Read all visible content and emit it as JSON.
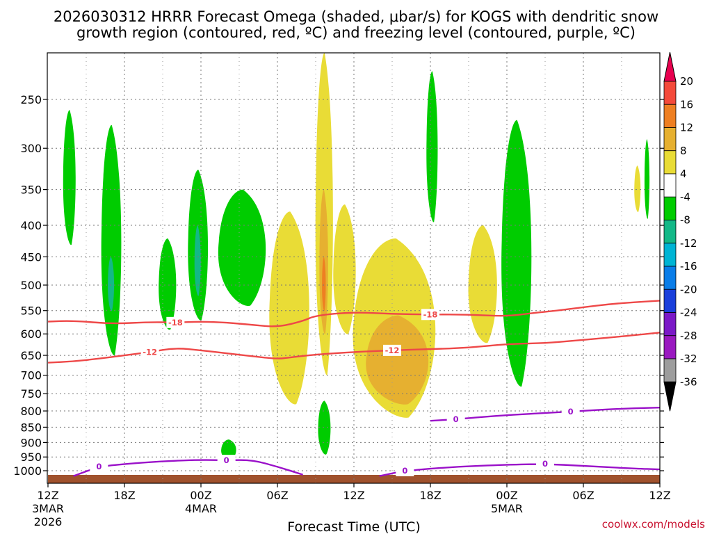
{
  "title_line1": "2026030312 HRRR Forecast Omega (shaded, μbar/s) for KOGS with dendritic snow",
  "title_line2": "growth region (contoured, red, ºC) and freezing level (contoured, purple, ºC)",
  "credit": "coolwx.com/models",
  "chart_data": {
    "type": "contour",
    "xlabel": "Forecast Time (UTC)",
    "ylabel": "",
    "x_unit": "forecast hour",
    "xlim": [
      0,
      48
    ],
    "ylim": [
      1025,
      200
    ],
    "y_scale": "log-pressure",
    "grid": true,
    "x_ticks": [
      {
        "hour": 0,
        "label": "12Z",
        "date": "3MAR",
        "year": "2026"
      },
      {
        "hour": 6,
        "label": "18Z",
        "date": "",
        "year": ""
      },
      {
        "hour": 12,
        "label": "00Z",
        "date": "4MAR",
        "year": ""
      },
      {
        "hour": 18,
        "label": "06Z",
        "date": "",
        "year": ""
      },
      {
        "hour": 24,
        "label": "12Z",
        "date": "",
        "year": ""
      },
      {
        "hour": 30,
        "label": "18Z",
        "date": "",
        "year": ""
      },
      {
        "hour": 36,
        "label": "00Z",
        "date": "5MAR",
        "year": ""
      },
      {
        "hour": 42,
        "label": "06Z",
        "date": "",
        "year": ""
      },
      {
        "hour": 48,
        "label": "12Z",
        "date": "",
        "year": ""
      }
    ],
    "y_ticks": [
      250,
      300,
      350,
      400,
      450,
      500,
      550,
      600,
      650,
      700,
      750,
      800,
      850,
      900,
      950,
      1000
    ],
    "colorbar": {
      "labels": [
        "20",
        "16",
        "12",
        "8",
        "4",
        "-4",
        "-8",
        "-12",
        "-16",
        "-20",
        "-24",
        "-28",
        "-32",
        "-36"
      ],
      "colors": [
        "#e8004f",
        "#f44a3a",
        "#ee7f22",
        "#e6b030",
        "#e9dc36",
        "#ffffff",
        "#00cc00",
        "#13b887",
        "#00b4d4",
        "#0a7de8",
        "#1a3fdb",
        "#7b19c7",
        "#9a19c0",
        "#9d9d9d",
        "#000000"
      ]
    },
    "series": [
      {
        "name": "-18",
        "color": "#ee4848",
        "points": [
          [
            0,
            573
          ],
          [
            2,
            571
          ],
          [
            5,
            578
          ],
          [
            8,
            574
          ],
          [
            10,
            575
          ],
          [
            12,
            573
          ],
          [
            14,
            575
          ],
          [
            16,
            580
          ],
          [
            18,
            585
          ],
          [
            20,
            572
          ],
          [
            21,
            560
          ],
          [
            24,
            553
          ],
          [
            27,
            557
          ],
          [
            30,
            558
          ],
          [
            33,
            558
          ],
          [
            36,
            562
          ],
          [
            38,
            555
          ],
          [
            40,
            550
          ],
          [
            42,
            543
          ],
          [
            44,
            537
          ],
          [
            46,
            533
          ],
          [
            48,
            530
          ]
        ]
      },
      {
        "name": "-12",
        "color": "#ee4848",
        "points": [
          [
            0,
            668
          ],
          [
            2,
            665
          ],
          [
            4,
            658
          ],
          [
            6,
            650
          ],
          [
            8,
            642
          ],
          [
            10,
            632
          ],
          [
            12,
            638
          ],
          [
            14,
            645
          ],
          [
            16,
            652
          ],
          [
            18,
            659
          ],
          [
            19,
            655
          ],
          [
            21,
            648
          ],
          [
            24,
            642
          ],
          [
            27,
            638
          ],
          [
            30,
            635
          ],
          [
            33,
            632
          ],
          [
            36,
            623
          ],
          [
            39,
            621
          ],
          [
            41,
            616
          ],
          [
            43,
            611
          ],
          [
            46,
            603
          ],
          [
            48,
            597
          ]
        ]
      },
      {
        "name": "0",
        "color": "#9a10c9",
        "points": [
          [
            2,
            1020
          ],
          [
            4,
            985
          ],
          [
            6,
            975
          ],
          [
            9,
            965
          ],
          [
            12,
            960
          ],
          [
            14,
            962
          ],
          [
            16,
            960
          ],
          [
            18,
            985
          ],
          [
            20,
            1015
          ]
        ]
      },
      {
        "name": "0",
        "color": "#9a10c9",
        "points": [
          [
            26,
            1020
          ],
          [
            28,
            1000
          ],
          [
            32,
            985
          ],
          [
            36,
            978
          ],
          [
            39,
            975
          ],
          [
            42,
            982
          ],
          [
            46,
            992
          ],
          [
            48,
            995
          ]
        ]
      },
      {
        "name": "0",
        "color": "#9a10c9",
        "points": [
          [
            30,
            830
          ],
          [
            32,
            825
          ],
          [
            35,
            815
          ],
          [
            38,
            808
          ],
          [
            41,
            802
          ],
          [
            44,
            795
          ],
          [
            46,
            792
          ],
          [
            48,
            790
          ]
        ]
      }
    ],
    "omega_regions": [
      {
        "level": "-8",
        "color": "#00cc00",
        "x_range": [
          1.2,
          2.2
        ],
        "p_range": [
          260,
          430
        ]
      },
      {
        "level": "-8",
        "color": "#00cc00",
        "x_range": [
          4.2,
          5.8
        ],
        "p_range": [
          275,
          650
        ]
      },
      {
        "level": "-12",
        "color": "#13b887",
        "x_range": [
          4.7,
          5.2
        ],
        "p_range": [
          450,
          550
        ]
      },
      {
        "level": "-8",
        "color": "#00cc00",
        "x_range": [
          8.7,
          10.1
        ],
        "p_range": [
          420,
          590
        ]
      },
      {
        "level": "-8",
        "color": "#00cc00",
        "x_range": [
          11.0,
          12.6
        ],
        "p_range": [
          325,
          570
        ]
      },
      {
        "level": "-12",
        "color": "#13b887",
        "x_range": [
          11.5,
          12.0
        ],
        "p_range": [
          400,
          520
        ]
      },
      {
        "level": "-8",
        "color": "#00cc00",
        "x_range": [
          13.4,
          17.2
        ],
        "p_range": [
          350,
          540
        ]
      },
      {
        "level": "4",
        "color": "#e9dc36",
        "x_range": [
          17.4,
          20.6
        ],
        "p_range": [
          380,
          780
        ]
      },
      {
        "level": "4",
        "color": "#e9dc36",
        "x_range": [
          21.0,
          22.4
        ],
        "p_range": [
          195,
          700
        ]
      },
      {
        "level": "8",
        "color": "#e6b030",
        "x_range": [
          21.3,
          22.0
        ],
        "p_range": [
          350,
          600
        ]
      },
      {
        "level": "12",
        "color": "#ee7f22",
        "x_range": [
          21.5,
          21.8
        ],
        "p_range": [
          450,
          550
        ]
      },
      {
        "level": "4",
        "color": "#e9dc36",
        "x_range": [
          22.4,
          24.2
        ],
        "p_range": [
          370,
          600
        ]
      },
      {
        "level": "4",
        "color": "#e9dc36",
        "x_range": [
          24.0,
          30.6
        ],
        "p_range": [
          420,
          820
        ]
      },
      {
        "level": "8",
        "color": "#e6b030",
        "x_range": [
          25.0,
          30.0
        ],
        "p_range": [
          560,
          780
        ]
      },
      {
        "level": "-8",
        "color": "#00cc00",
        "x_range": [
          29.7,
          30.6
        ],
        "p_range": [
          225,
          395
        ]
      },
      {
        "level": "4",
        "color": "#e9dc36",
        "x_range": [
          33.0,
          35.3
        ],
        "p_range": [
          400,
          620
        ]
      },
      {
        "level": "-8",
        "color": "#00cc00",
        "x_range": [
          35.6,
          38.0
        ],
        "p_range": [
          270,
          730
        ]
      },
      {
        "level": "4",
        "color": "#e9dc36",
        "x_range": [
          46.0,
          46.5
        ],
        "p_range": [
          320,
          380
        ]
      },
      {
        "level": "-8",
        "color": "#00cc00",
        "x_range": [
          46.8,
          47.2
        ],
        "p_range": [
          290,
          390
        ]
      },
      {
        "level": "-8",
        "color": "#00cc00",
        "x_range": [
          21.2,
          22.2
        ],
        "p_range": [
          770,
          940
        ]
      },
      {
        "level": "-8",
        "color": "#00cc00",
        "x_range": [
          13.6,
          14.8
        ],
        "p_range": [
          890,
          960
        ]
      }
    ]
  }
}
